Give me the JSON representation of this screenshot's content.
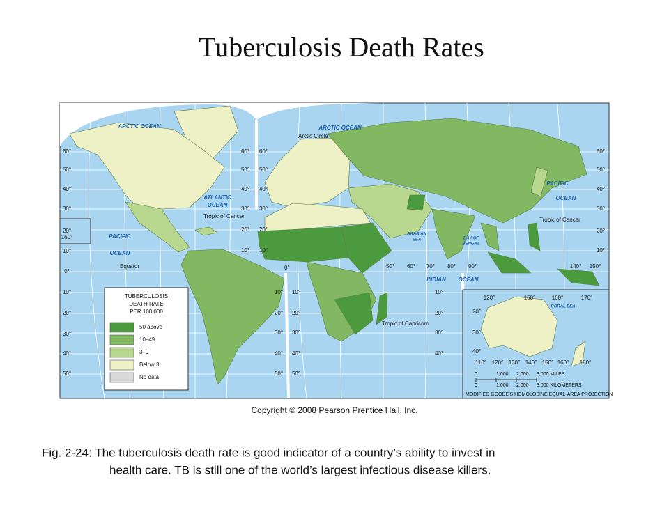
{
  "title": "Tuberculosis Death Rates",
  "map": {
    "legend": {
      "title": [
        "TUBERCULOSIS",
        "DEATH RATE",
        "PER 100,000"
      ],
      "items": [
        {
          "label": "50 above",
          "color": "#4c9a3e"
        },
        {
          "label": "10–49",
          "color": "#83b862"
        },
        {
          "label": "3–9",
          "color": "#b9d88f"
        },
        {
          "label": "Below 3",
          "color": "#eef1c6"
        },
        {
          "label": "No data",
          "color": "#d9d9d9"
        }
      ]
    },
    "labels": {
      "arctic_ocean": "ARCTIC OCEAN",
      "atlantic_ocean": [
        "ATLANTIC",
        "OCEAN"
      ],
      "pacific_ocean": [
        "PACIFIC",
        "OCEAN"
      ],
      "indian_ocean": [
        "INDIAN",
        "OCEAN"
      ],
      "arabian_sea": [
        "ARABIAN",
        "SEA"
      ],
      "bay_of_bengal": [
        "BAY OF",
        "BENGAL"
      ],
      "coral_sea": "CORAL SEA",
      "arctic_circle": "Arctic Circle",
      "tropic_of_cancer": "Tropic of Cancer",
      "tropic_of_capricorn": "Tropic of Capricorn",
      "equator": "Equator",
      "prime_meridian": "0°"
    },
    "graticule_labels": [
      [
        "60°",
        "50°",
        "40°",
        "30°",
        "20°",
        "10°",
        "0°",
        "10°",
        "20°",
        "30°",
        "40°",
        "50°"
      ],
      [
        "60°",
        "50°",
        "40°",
        "30°",
        "20°",
        "10°"
      ],
      [
        "60°",
        "50°",
        "40°",
        "30°",
        "20°",
        "10°"
      ],
      [
        "60°",
        "50°",
        "40°",
        "30°",
        "20°",
        "10°"
      ],
      [
        "10°",
        "20°",
        "30°",
        "40°",
        "50°"
      ],
      [
        "10°",
        "20°",
        "30°",
        "40°",
        "50°"
      ],
      [
        "10°",
        "20°",
        "30°",
        "40°"
      ],
      [
        "50°",
        "60°",
        "70°",
        "80°",
        "90°",
        "140°",
        "150°"
      ],
      [
        "120°",
        "150°",
        "160°",
        "170°"
      ],
      [
        "110°",
        "120°",
        "130°",
        "140°",
        "150°",
        "160°",
        "180°"
      ],
      [
        "20°",
        "30°",
        "40°"
      ],
      [
        "160°"
      ]
    ],
    "scale": {
      "miles": [
        "0",
        "1,000",
        "2,000",
        "3,000 MILES"
      ],
      "kilometers": [
        "0",
        "1,000",
        "2,000",
        "3,000 KILOMETERS"
      ]
    },
    "projection": "MODIFIED GOODE'S HOMOLOSINE EQUAL-AREA PROJECTION"
  },
  "copyright": "Copyright © 2008 Pearson Prentice Hall, Inc.",
  "caption": [
    "Fig. 2-24: The tuberculosis death rate is good indicator of a country’s ability to invest in",
    "health care.  TB is still one of the world’s largest infectious disease killers."
  ]
}
